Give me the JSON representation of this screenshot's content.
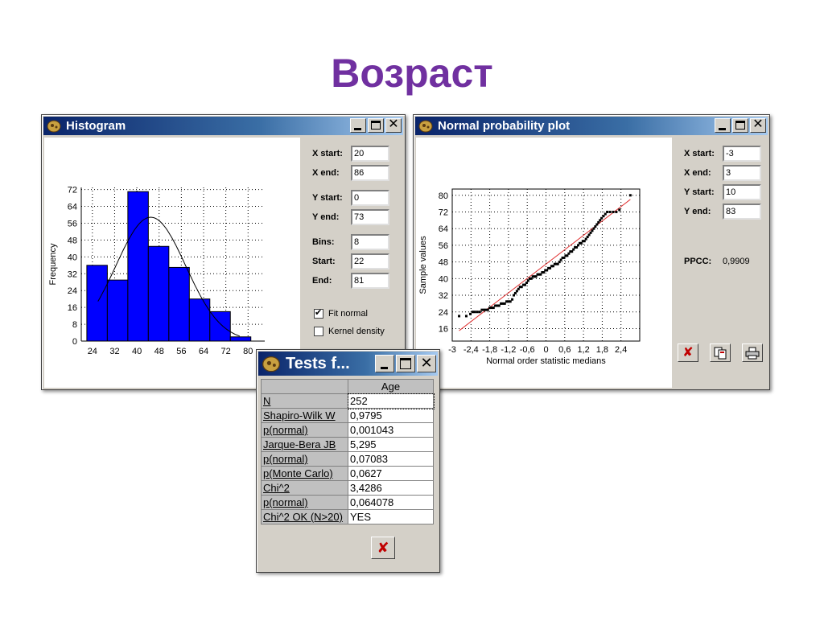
{
  "slide_title": "Возраст",
  "histogram_window": {
    "title": "Histogram",
    "fields": [
      {
        "label": "X start:",
        "value": "20"
      },
      {
        "label": "X end:",
        "value": "86"
      },
      {
        "label": "Y start:",
        "value": "0"
      },
      {
        "label": "Y end:",
        "value": "73"
      },
      {
        "label": "Bins:",
        "value": "8"
      },
      {
        "label": "Start:",
        "value": "22"
      },
      {
        "label": "End:",
        "value": "81"
      }
    ],
    "checkboxes": [
      {
        "label": "Fit normal",
        "checked": true
      },
      {
        "label": "Kernel density",
        "checked": false
      }
    ]
  },
  "npp_window": {
    "title": "Normal probability plot",
    "fields": [
      {
        "label": "X start:",
        "value": "-3"
      },
      {
        "label": "X end:",
        "value": "3"
      },
      {
        "label": "Y start:",
        "value": "10"
      },
      {
        "label": "Y end:",
        "value": "83"
      }
    ],
    "ppcc_label": "PPCC:",
    "ppcc_value": "0,9909"
  },
  "tests_window": {
    "title": "Tests f...",
    "column_header": "Age",
    "rows": [
      {
        "label": "N",
        "value": "252"
      },
      {
        "label": "Shapiro-Wilk W",
        "value": "0,9795"
      },
      {
        "label": "p(normal)",
        "value": "0,001043"
      },
      {
        "label": "Jarque-Bera JB",
        "value": "5,295"
      },
      {
        "label": "p(normal)",
        "value": "0,07083"
      },
      {
        "label": "p(Monte Carlo)",
        "value": "0,0627"
      },
      {
        "label": "Chi^2",
        "value": "3,4286"
      },
      {
        "label": "p(normal)",
        "value": "0,064078"
      },
      {
        "label": "Chi^2 OK (N>20)",
        "value": "YES"
      }
    ]
  },
  "chart_data": [
    {
      "type": "bar",
      "title": "",
      "xlabel": "",
      "ylabel": "Frequency",
      "bin_edges": [
        22,
        29.375,
        36.75,
        44.125,
        51.5,
        58.875,
        66.25,
        73.625,
        81
      ],
      "values": [
        36,
        29,
        71,
        45,
        35,
        20,
        14,
        2
      ],
      "xlim": [
        20,
        86
      ],
      "ylim": [
        0,
        73
      ],
      "x_ticks": [
        "24",
        "32",
        "40",
        "48",
        "56",
        "64",
        "72",
        "80"
      ],
      "y_ticks": [
        "0",
        "8",
        "16",
        "24",
        "32",
        "40",
        "48",
        "56",
        "64",
        "72"
      ],
      "bar_color": "#0000ff",
      "fit_normal": {
        "mean": 45,
        "sd": 12.6,
        "n": 252,
        "bin_width": 7.375
      },
      "grid": true
    },
    {
      "type": "scatter",
      "title": "",
      "xlabel": "Normal order statistic medians",
      "ylabel": "Sample values",
      "xlim": [
        -3,
        3
      ],
      "ylim": [
        10,
        83
      ],
      "x_ticks": [
        "-3",
        "-2,4",
        "-1,8",
        "-1,2",
        "-0,6",
        "0",
        "0,6",
        "1,2",
        "1,8",
        "2,4"
      ],
      "y_ticks": [
        "16",
        "24",
        "32",
        "40",
        "48",
        "56",
        "64",
        "72",
        "80"
      ],
      "points": [
        [
          -2.78,
          22
        ],
        [
          -2.55,
          22
        ],
        [
          -2.42,
          23
        ],
        [
          -2.35,
          24
        ],
        [
          -2.28,
          24
        ],
        [
          -2.2,
          24
        ],
        [
          -2.12,
          24
        ],
        [
          -2.05,
          25
        ],
        [
          -1.98,
          25
        ],
        [
          -1.92,
          25
        ],
        [
          -1.86,
          25
        ],
        [
          -1.8,
          26
        ],
        [
          -1.74,
          26
        ],
        [
          -1.68,
          26
        ],
        [
          -1.62,
          27
        ],
        [
          -1.56,
          27
        ],
        [
          -1.5,
          27
        ],
        [
          -1.44,
          28
        ],
        [
          -1.38,
          28
        ],
        [
          -1.32,
          28
        ],
        [
          -1.26,
          29
        ],
        [
          -1.2,
          29
        ],
        [
          -1.14,
          29
        ],
        [
          -1.08,
          30
        ],
        [
          -1.03,
          32
        ],
        [
          -0.98,
          33
        ],
        [
          -0.93,
          34
        ],
        [
          -0.88,
          35
        ],
        [
          -0.83,
          36
        ],
        [
          -0.78,
          36
        ],
        [
          -0.72,
          37
        ],
        [
          -0.67,
          37
        ],
        [
          -0.62,
          38
        ],
        [
          -0.57,
          39
        ],
        [
          -0.52,
          40
        ],
        [
          -0.47,
          40
        ],
        [
          -0.42,
          41
        ],
        [
          -0.37,
          41
        ],
        [
          -0.32,
          41
        ],
        [
          -0.27,
          42
        ],
        [
          -0.22,
          42
        ],
        [
          -0.17,
          42
        ],
        [
          -0.12,
          43
        ],
        [
          -0.07,
          43
        ],
        [
          -0.02,
          44
        ],
        [
          0.03,
          44
        ],
        [
          0.08,
          45
        ],
        [
          0.13,
          45
        ],
        [
          0.18,
          46
        ],
        [
          0.23,
          46
        ],
        [
          0.28,
          47
        ],
        [
          0.33,
          47
        ],
        [
          0.38,
          47
        ],
        [
          0.43,
          48
        ],
        [
          0.48,
          49
        ],
        [
          0.53,
          50
        ],
        [
          0.58,
          50
        ],
        [
          0.63,
          51
        ],
        [
          0.68,
          51
        ],
        [
          0.73,
          52
        ],
        [
          0.78,
          53
        ],
        [
          0.83,
          53
        ],
        [
          0.88,
          54
        ],
        [
          0.93,
          55
        ],
        [
          0.98,
          55
        ],
        [
          1.03,
          56
        ],
        [
          1.08,
          57
        ],
        [
          1.13,
          57
        ],
        [
          1.18,
          58
        ],
        [
          1.23,
          58
        ],
        [
          1.28,
          59
        ],
        [
          1.33,
          60
        ],
        [
          1.38,
          61
        ],
        [
          1.43,
          62
        ],
        [
          1.48,
          63
        ],
        [
          1.53,
          64
        ],
        [
          1.58,
          65
        ],
        [
          1.63,
          66
        ],
        [
          1.68,
          67
        ],
        [
          1.73,
          68
        ],
        [
          1.78,
          69
        ],
        [
          1.84,
          70
        ],
        [
          1.9,
          71
        ],
        [
          1.96,
          72
        ],
        [
          2.05,
          72
        ],
        [
          2.15,
          72
        ],
        [
          2.25,
          72
        ],
        [
          2.35,
          73
        ],
        [
          2.7,
          80
        ]
      ],
      "fit_line": [
        [
          -2.78,
          15
        ],
        [
          2.7,
          78
        ]
      ],
      "point_color": "#000000",
      "line_color": "#e03030",
      "grid": true
    }
  ]
}
